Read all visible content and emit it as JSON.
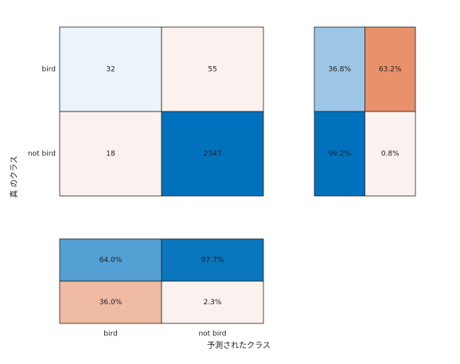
{
  "chart_data": {
    "type": "confusion",
    "classes": [
      "bird",
      "not bird"
    ],
    "xlabel": "予測されたクラス",
    "ylabel": "真 のクラス",
    "matrix": {
      "values": [
        [
          32,
          55
        ],
        [
          18,
          2347
        ]
      ],
      "colors": [
        [
          "#ebf3fb",
          "#fbf1ee"
        ],
        [
          "#fbf1ee",
          "#0072bd"
        ]
      ]
    },
    "row_summary": {
      "values": [
        [
          36.8,
          63.2
        ],
        [
          99.2,
          0.8
        ]
      ],
      "value_labels": [
        [
          "36.8%",
          "63.2%"
        ],
        [
          "99.2%",
          "0.8%"
        ]
      ],
      "colors": [
        [
          "#9dc5e5",
          "#e8916a"
        ],
        [
          "#0072bd",
          "#fbf1ee"
        ]
      ]
    },
    "column_summary": {
      "values": [
        [
          64.0,
          97.7
        ],
        [
          36.0,
          2.3
        ]
      ],
      "value_labels": [
        [
          "64.0%",
          "97.7%"
        ],
        [
          "36.0%",
          "2.3%"
        ]
      ],
      "colors": [
        [
          "#549fd3",
          "#0a76be"
        ],
        [
          "#efbba4",
          "#fbf1ee"
        ]
      ]
    }
  }
}
